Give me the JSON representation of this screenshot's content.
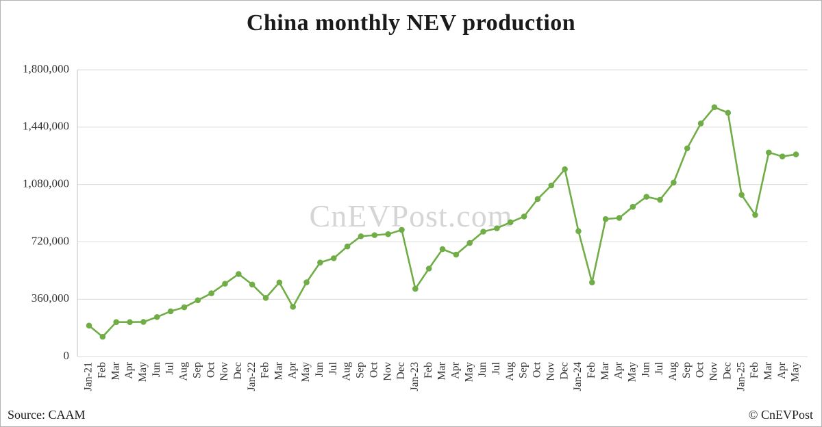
{
  "title": "China monthly NEV production",
  "watermark": "CnEVPost.com",
  "footer": {
    "source": "Source: CAAM",
    "copyright": "© CnEVPost"
  },
  "colors": {
    "line": "#70ad47",
    "marker": "#70ad47",
    "grid": "#d9d9d9",
    "axis": "#bfbfbf",
    "text": "#333333"
  },
  "chart_data": {
    "type": "line",
    "title": "China monthly NEV production",
    "xlabel": "",
    "ylabel": "",
    "ylim": [
      0,
      1800000
    ],
    "grid": "horizontal",
    "legend_position": "none",
    "yticks": [
      {
        "value": 0,
        "label": "0"
      },
      {
        "value": 360000,
        "label": "360,000"
      },
      {
        "value": 720000,
        "label": "720,000"
      },
      {
        "value": 1080000,
        "label": "1,080,000"
      },
      {
        "value": 1440000,
        "label": "1,440,000"
      },
      {
        "value": 1800000,
        "label": "1,800,000"
      }
    ],
    "categories": [
      "Jan-21",
      "Feb",
      "Mar",
      "Apr",
      "May",
      "Jun",
      "Jul",
      "Aug",
      "Sep",
      "Oct",
      "Nov",
      "Dec",
      "Jan-22",
      "Feb",
      "Mar",
      "Apr",
      "May",
      "Jun",
      "Jul",
      "Aug",
      "Sep",
      "Oct",
      "Nov",
      "Dec",
      "Jan-23",
      "Feb",
      "Mar",
      "Apr",
      "May",
      "Jun",
      "Jul",
      "Aug",
      "Sep",
      "Oct",
      "Nov",
      "Dec",
      "Jan-24",
      "Feb",
      "Mar",
      "Apr",
      "May",
      "Jun",
      "Jul",
      "Aug",
      "Sep",
      "Oct",
      "Nov",
      "Dec",
      "Jan-25",
      "Feb",
      "Mar",
      "Apr",
      "May"
    ],
    "values": [
      194000,
      124000,
      216000,
      216000,
      217000,
      248000,
      284000,
      309000,
      353000,
      397000,
      457000,
      518000,
      452000,
      368000,
      465000,
      312000,
      466000,
      590000,
      617000,
      691000,
      755000,
      762000,
      768000,
      795000,
      425000,
      552000,
      674000,
      640000,
      713000,
      784000,
      805000,
      843000,
      879000,
      989000,
      1074000,
      1176000,
      787000,
      465000,
      863000,
      870000,
      940000,
      1003000,
      984000,
      1092000,
      1307000,
      1463000,
      1565000,
      1530000,
      1015000,
      889000,
      1281000,
      1256000,
      1269000
    ]
  }
}
